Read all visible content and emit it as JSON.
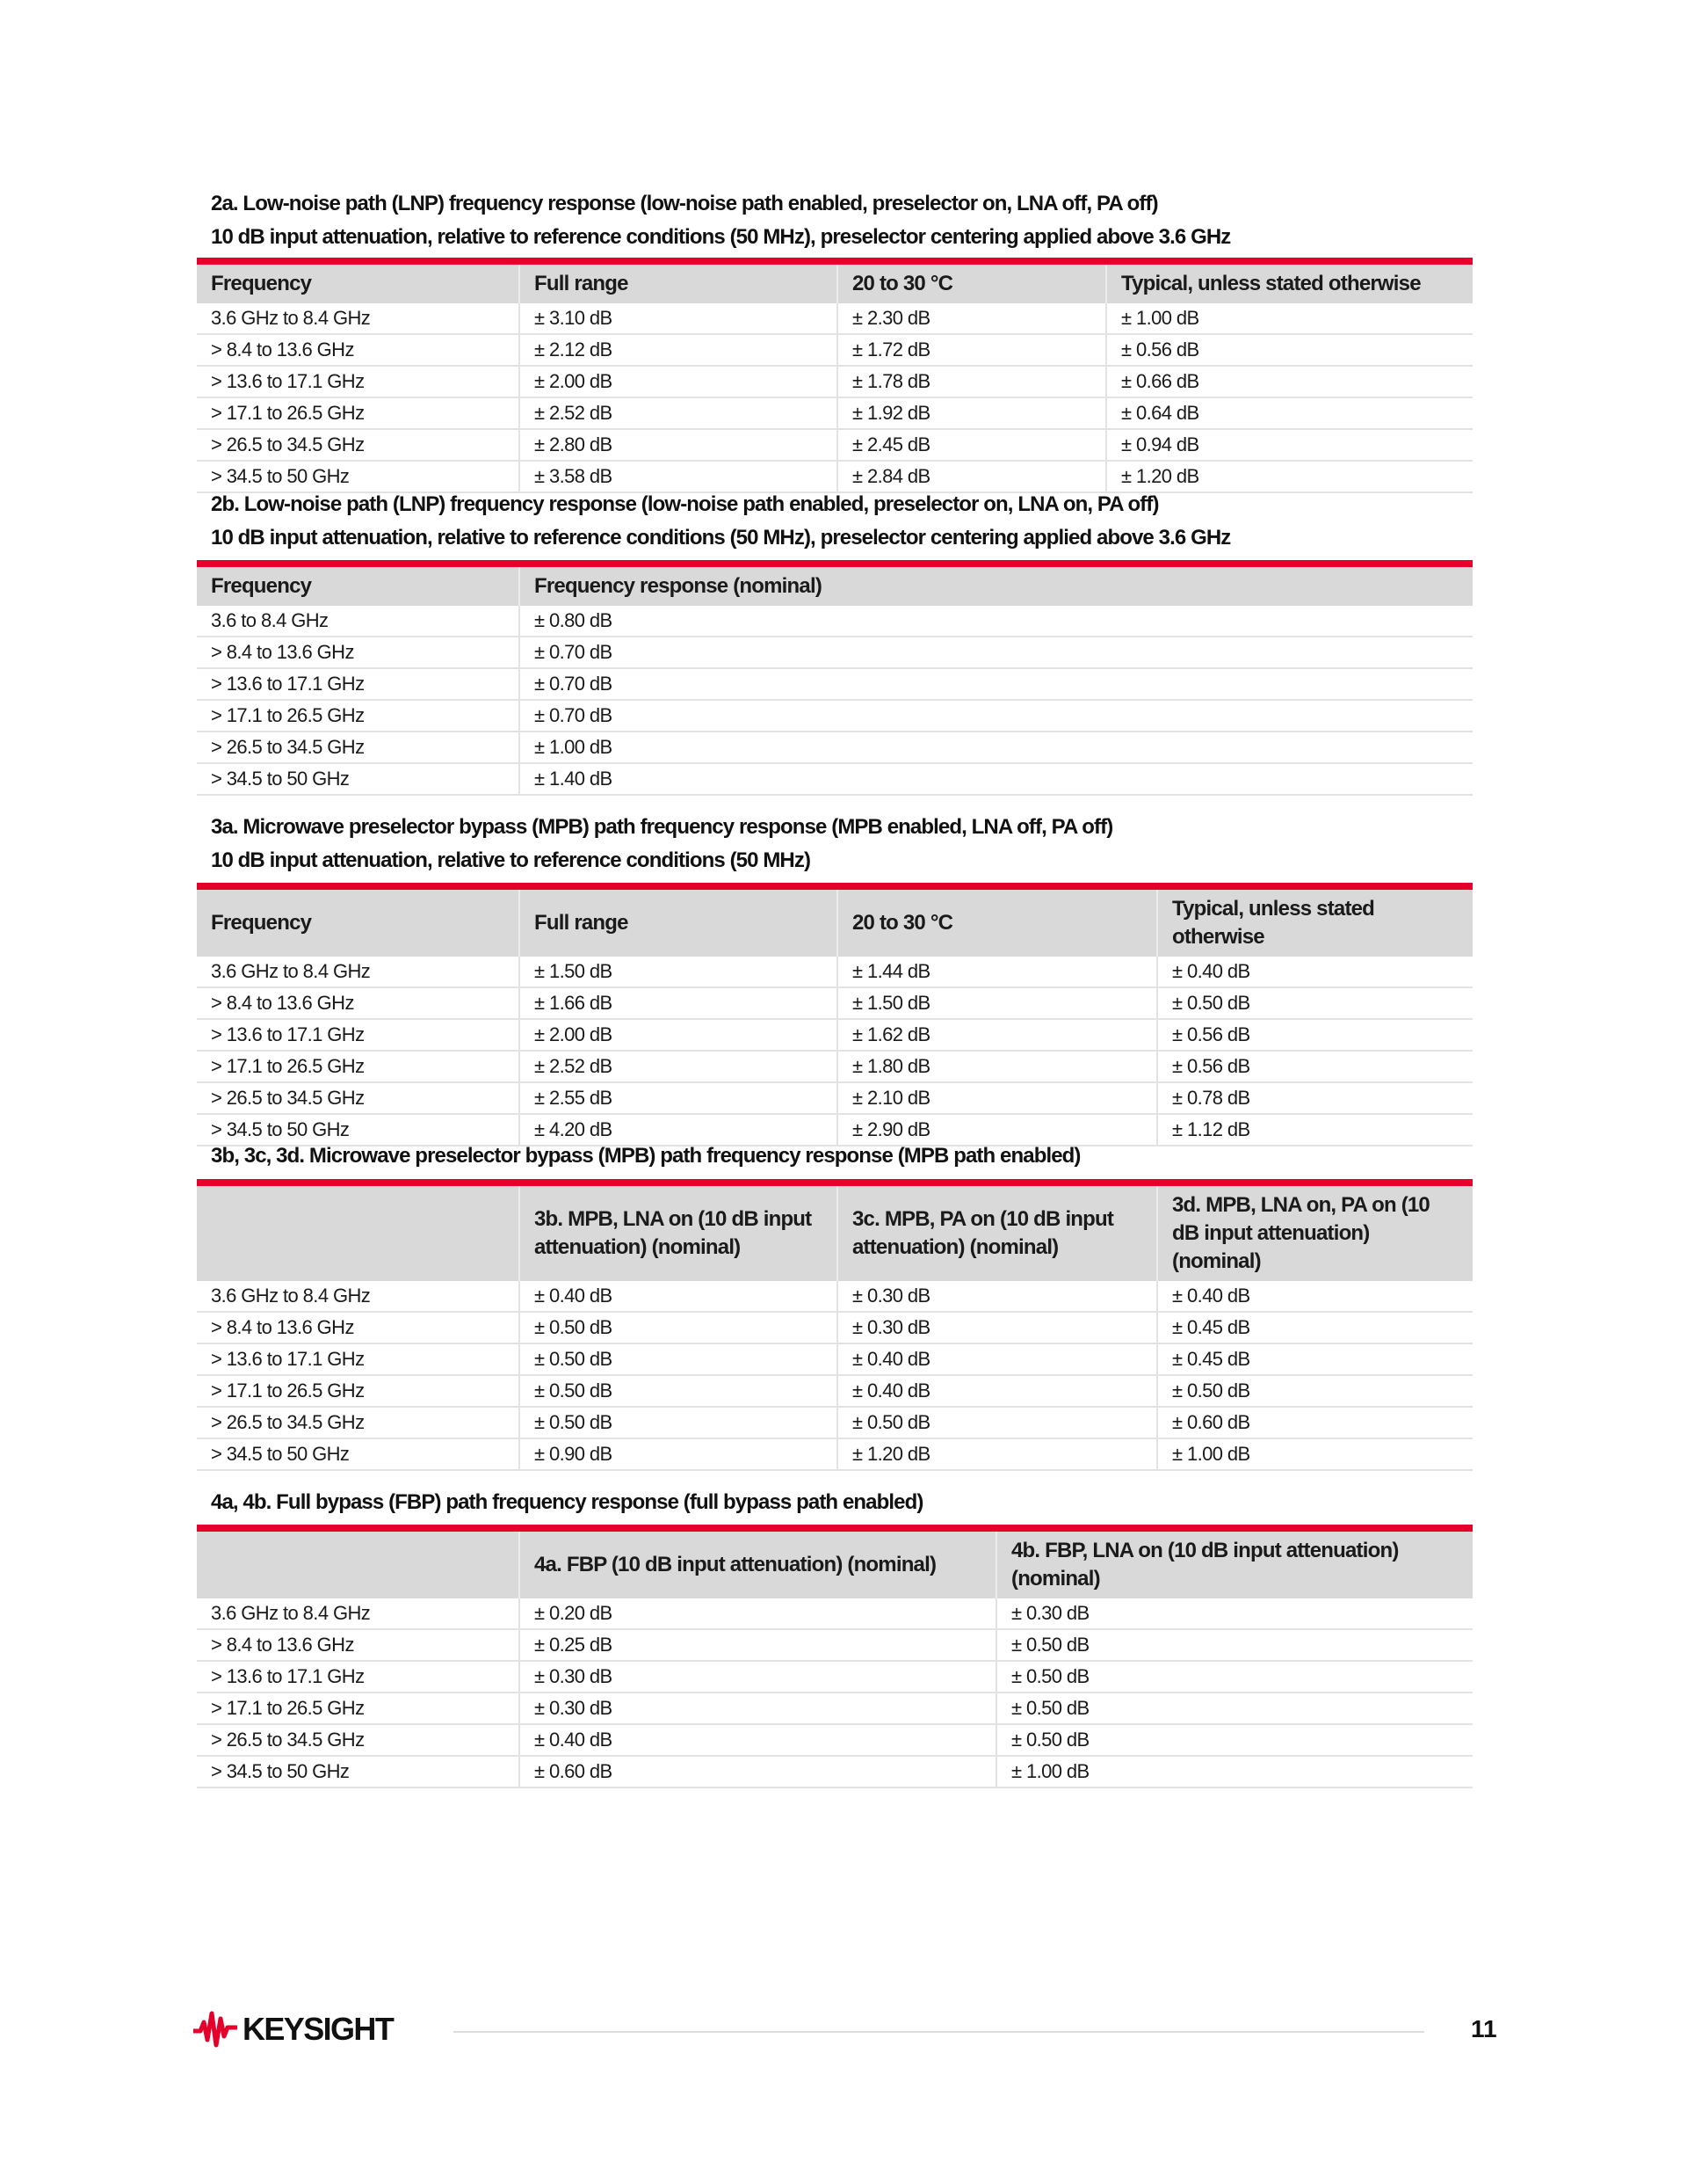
{
  "tables": [
    {
      "title_lines": [
        "2a. Low-noise path (LNP) frequency response (low-noise path enabled, preselector on, LNA off, PA off)",
        "10 dB input attenuation, relative to reference conditions (50 MHz), preselector centering applied above 3.6 GHz"
      ],
      "headers": [
        "Frequency",
        "Full range",
        "20 to 30 °C",
        "Typical, unless stated otherwise"
      ],
      "rows": [
        [
          "3.6 GHz to 8.4 GHz",
          "± 3.10 dB",
          "± 2.30 dB",
          "± 1.00 dB"
        ],
        [
          "> 8.4 to 13.6 GHz",
          "± 2.12 dB",
          "± 1.72 dB",
          "± 0.56 dB"
        ],
        [
          "> 13.6 to 17.1 GHz",
          "± 2.00 dB",
          "± 1.78 dB",
          "± 0.66 dB"
        ],
        [
          "> 17.1 to 26.5 GHz",
          "± 2.52 dB",
          "± 1.92 dB",
          "± 0.64 dB"
        ],
        [
          "> 26.5 to 34.5 GHz",
          "± 2.80 dB",
          "± 2.45 dB",
          "± 0.94 dB"
        ],
        [
          "> 34.5 to 50 GHz",
          "± 3.58 dB",
          "± 2.84 dB",
          "± 1.20 dB"
        ]
      ]
    },
    {
      "title_lines": [
        "2b. Low-noise path (LNP) frequency response (low-noise path enabled, preselector on, LNA on, PA off)",
        "10 dB input attenuation, relative to reference conditions (50 MHz), preselector centering applied above 3.6 GHz"
      ],
      "headers": [
        "Frequency",
        "Frequency response (nominal)"
      ],
      "rows": [
        [
          "3.6 to 8.4 GHz",
          "± 0.80 dB"
        ],
        [
          "> 8.4 to 13.6 GHz",
          "± 0.70 dB"
        ],
        [
          "> 13.6 to 17.1 GHz",
          "± 0.70 dB"
        ],
        [
          "> 17.1 to 26.5 GHz",
          "± 0.70 dB"
        ],
        [
          "> 26.5 to 34.5 GHz",
          "± 1.00 dB"
        ],
        [
          "> 34.5 to 50 GHz",
          "± 1.40 dB"
        ]
      ]
    },
    {
      "title_lines": [
        "3a. Microwave preselector bypass (MPB) path frequency response (MPB enabled, LNA off, PA off)",
        "10 dB input attenuation, relative to reference conditions (50 MHz)"
      ],
      "headers": [
        "Frequency",
        "Full range",
        "20 to 30 °C",
        "Typical, unless stated otherwise"
      ],
      "rows": [
        [
          "3.6 GHz to 8.4 GHz",
          "± 1.50 dB",
          "± 1.44 dB",
          "± 0.40 dB"
        ],
        [
          "> 8.4 to 13.6 GHz",
          "± 1.66 dB",
          "± 1.50 dB",
          "± 0.50 dB"
        ],
        [
          "> 13.6 to 17.1 GHz",
          "± 2.00 dB",
          "± 1.62 dB",
          "± 0.56 dB"
        ],
        [
          "> 17.1 to 26.5 GHz",
          "± 2.52 dB",
          "± 1.80 dB",
          "± 0.56 dB"
        ],
        [
          "> 26.5 to 34.5 GHz",
          "± 2.55 dB",
          "± 2.10 dB",
          "± 0.78 dB"
        ],
        [
          "> 34.5 to 50 GHz",
          "± 4.20 dB",
          "± 2.90 dB",
          "± 1.12 dB"
        ]
      ]
    },
    {
      "title_lines": [
        "3b, 3c, 3d. Microwave preselector bypass (MPB) path frequency response (MPB path enabled)"
      ],
      "headers": [
        "",
        "3b. MPB, LNA on (10 dB input attenuation) (nominal)",
        "3c. MPB, PA on (10 dB input attenuation) (nominal)",
        "3d. MPB, LNA on, PA on (10 dB input attenuation) (nominal)"
      ],
      "rows": [
        [
          "3.6 GHz to 8.4 GHz",
          "± 0.40 dB",
          "± 0.30 dB",
          "± 0.40 dB"
        ],
        [
          "> 8.4 to 13.6 GHz",
          "± 0.50 dB",
          "± 0.30 dB",
          "± 0.45 dB"
        ],
        [
          "> 13.6 to 17.1 GHz",
          "± 0.50 dB",
          "± 0.40 dB",
          "± 0.45 dB"
        ],
        [
          "> 17.1 to 26.5 GHz",
          "± 0.50 dB",
          "± 0.40 dB",
          "± 0.50 dB"
        ],
        [
          "> 26.5 to 34.5 GHz",
          "± 0.50 dB",
          "± 0.50 dB",
          "± 0.60 dB"
        ],
        [
          "> 34.5 to 50 GHz",
          "± 0.90 dB",
          "± 1.20 dB",
          "± 1.00 dB"
        ]
      ]
    },
    {
      "title_lines": [
        "4a, 4b. Full bypass (FBP) path frequency response (full bypass path enabled)"
      ],
      "headers": [
        "",
        "4a. FBP (10 dB input attenuation) (nominal)",
        "4b. FBP, LNA on (10 dB input attenuation) (nominal)"
      ],
      "rows": [
        [
          "3.6 GHz to 8.4 GHz",
          "± 0.20 dB",
          "± 0.30 dB"
        ],
        [
          "> 8.4 to 13.6 GHz",
          "± 0.25 dB",
          "± 0.50 dB"
        ],
        [
          "> 13.6 to 17.1 GHz",
          "± 0.30 dB",
          "± 0.50 dB"
        ],
        [
          "> 17.1 to 26.5 GHz",
          "± 0.30 dB",
          "± 0.50 dB"
        ],
        [
          "> 26.5 to 34.5 GHz",
          "± 0.40 dB",
          "± 0.50 dB"
        ],
        [
          "> 34.5 to 50 GHz",
          "± 0.60 dB",
          "± 1.00 dB"
        ]
      ]
    }
  ],
  "footer": {
    "logo_text": "KEYSIGHT",
    "page_number": "11"
  },
  "colors": {
    "accent_red": "#e4002b",
    "header_gray": "#d9d9d9"
  }
}
